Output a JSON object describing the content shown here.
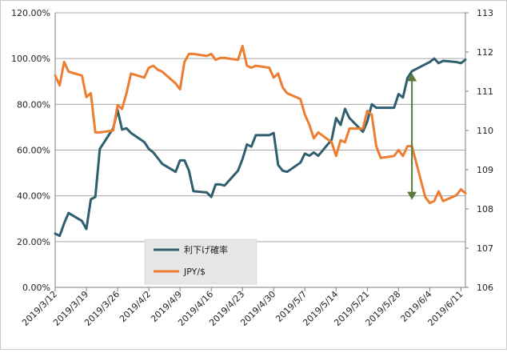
{
  "chart_data": {
    "type": "line",
    "title": "",
    "categories": [
      "2019/3/12",
      "2019/3/19",
      "2019/3/26",
      "2019/4/2",
      "2019/4/9",
      "2019/4/16",
      "2019/4/23",
      "2019/4/30",
      "2019/5/7",
      "2019/5/14",
      "2019/5/21",
      "2019/5/28",
      "2019/6/4",
      "2019/6/11"
    ],
    "y_left": {
      "ticks": [
        "0.00%",
        "20.00%",
        "40.00%",
        "60.00%",
        "80.00%",
        "100.00%",
        "120.00%"
      ],
      "range": [
        0,
        120
      ]
    },
    "y_right": {
      "ticks": [
        "106",
        "107",
        "108",
        "109",
        "110",
        "111",
        "112",
        "113"
      ],
      "range": [
        106,
        113
      ]
    },
    "grid": "horizontal",
    "legend": "bottom-center",
    "series": [
      {
        "name": "利下げ確率",
        "axis": "left",
        "color": "#2f5f6f",
        "x": [
          "2019/3/12",
          "2019/3/13",
          "2019/3/14",
          "2019/3/15",
          "2019/3/18",
          "2019/3/19",
          "2019/3/20",
          "2019/3/21",
          "2019/3/22",
          "2019/3/25",
          "2019/3/26",
          "2019/3/27",
          "2019/3/28",
          "2019/3/29",
          "2019/4/1",
          "2019/4/2",
          "2019/4/3",
          "2019/4/4",
          "2019/4/5",
          "2019/4/8",
          "2019/4/9",
          "2019/4/10",
          "2019/4/11",
          "2019/4/12",
          "2019/4/15",
          "2019/4/16",
          "2019/4/17",
          "2019/4/18",
          "2019/4/19",
          "2019/4/22",
          "2019/4/23",
          "2019/4/24",
          "2019/4/25",
          "2019/4/26",
          "2019/4/29",
          "2019/4/30",
          "2019/5/1",
          "2019/5/2",
          "2019/5/3",
          "2019/5/6",
          "2019/5/7",
          "2019/5/8",
          "2019/5/9",
          "2019/5/10",
          "2019/5/13",
          "2019/5/14",
          "2019/5/15",
          "2019/5/16",
          "2019/5/17",
          "2019/5/20",
          "2019/5/21",
          "2019/5/22",
          "2019/5/23",
          "2019/5/24",
          "2019/5/27",
          "2019/5/28",
          "2019/5/29",
          "2019/5/30",
          "2019/5/31",
          "2019/6/3",
          "2019/6/4",
          "2019/6/5",
          "2019/6/6",
          "2019/6/7",
          "2019/6/10",
          "2019/6/11",
          "2019/6/12"
        ],
        "values": [
          23.5,
          22.5,
          28,
          32.5,
          29,
          25.5,
          38.5,
          39.5,
          60.5,
          69.5,
          77.5,
          69,
          69.5,
          67.5,
          63.5,
          60.5,
          59,
          56.5,
          54,
          50.5,
          55.5,
          55.5,
          51,
          42,
          41.5,
          39.5,
          45,
          45,
          44.5,
          51,
          56,
          62.5,
          61.5,
          66.5,
          66.5,
          67.5,
          53.5,
          51,
          50.5,
          54.5,
          58.5,
          57.5,
          59,
          57.5,
          64.5,
          74,
          71,
          78,
          74,
          68,
          72.5,
          80,
          78.5,
          78.5,
          78.5,
          84.5,
          83,
          91.5,
          94.5,
          97.5,
          98.5,
          100,
          98,
          99,
          98.5,
          98,
          99.5
        ]
      },
      {
        "name": "JPY/$",
        "axis": "right",
        "color": "#ed7d31",
        "x": [
          "2019/3/12",
          "2019/3/13",
          "2019/3/14",
          "2019/3/15",
          "2019/3/18",
          "2019/3/19",
          "2019/3/20",
          "2019/3/21",
          "2019/3/22",
          "2019/3/25",
          "2019/3/26",
          "2019/3/27",
          "2019/3/28",
          "2019/3/29",
          "2019/4/1",
          "2019/4/2",
          "2019/4/3",
          "2019/4/4",
          "2019/4/5",
          "2019/4/8",
          "2019/4/9",
          "2019/4/10",
          "2019/4/11",
          "2019/4/12",
          "2019/4/15",
          "2019/4/16",
          "2019/4/17",
          "2019/4/18",
          "2019/4/19",
          "2019/4/22",
          "2019/4/23",
          "2019/4/24",
          "2019/4/25",
          "2019/4/26",
          "2019/4/29",
          "2019/4/30",
          "2019/5/1",
          "2019/5/2",
          "2019/5/3",
          "2019/5/6",
          "2019/5/7",
          "2019/5/8",
          "2019/5/9",
          "2019/5/10",
          "2019/5/13",
          "2019/5/14",
          "2019/5/15",
          "2019/5/16",
          "2019/5/17",
          "2019/5/20",
          "2019/5/21",
          "2019/5/22",
          "2019/5/23",
          "2019/5/24",
          "2019/5/27",
          "2019/5/28",
          "2019/5/29",
          "2019/5/30",
          "2019/5/31",
          "2019/6/3",
          "2019/6/4",
          "2019/6/5",
          "2019/6/6",
          "2019/6/7",
          "2019/6/10",
          "2019/6/11",
          "2019/6/12"
        ],
        "values": [
          111.4,
          111.15,
          111.75,
          111.5,
          111.4,
          110.85,
          110.95,
          109.95,
          109.95,
          110.0,
          110.65,
          110.55,
          110.95,
          111.45,
          111.35,
          111.6,
          111.65,
          111.55,
          111.5,
          111.2,
          111.05,
          111.75,
          111.95,
          111.95,
          111.9,
          111.95,
          111.8,
          111.85,
          111.85,
          111.8,
          112.15,
          111.65,
          111.6,
          111.65,
          111.6,
          111.35,
          111.45,
          111.1,
          110.95,
          110.8,
          110.4,
          110.15,
          109.8,
          109.95,
          109.7,
          109.35,
          109.75,
          109.7,
          110.05,
          110.05,
          110.5,
          110.4,
          109.6,
          109.3,
          109.35,
          109.5,
          109.35,
          109.6,
          109.6,
          108.3,
          108.15,
          108.2,
          108.45,
          108.2,
          108.35,
          108.5,
          108.4
        ]
      }
    ],
    "annotation": {
      "type": "double-arrow",
      "color": "#5a7a3a",
      "x": "2019/5/31",
      "from_left_value": 95,
      "to_right_value": 108.15
    }
  }
}
